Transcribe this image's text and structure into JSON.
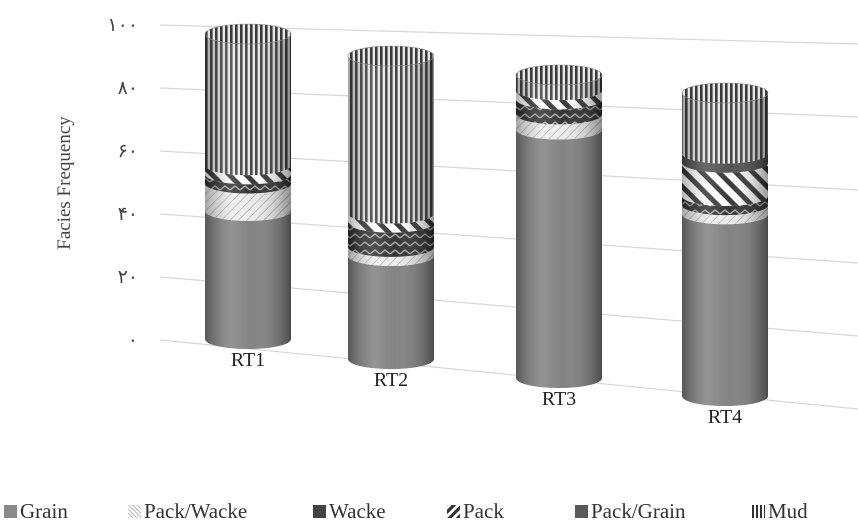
{
  "chart_data": {
    "type": "bar",
    "style": "3d-stacked-cylinder",
    "ylabel": "Facies Frequency",
    "y_ticks": [
      "٠",
      "٢٠",
      "۴٠",
      "۶٠",
      "٨٠",
      "١٠٠"
    ],
    "ylim": [
      0,
      100
    ],
    "grid": true,
    "legend_position": "bottom",
    "categories": [
      "RT1",
      "RT2",
      "RT3",
      "RT4"
    ],
    "series": [
      {
        "name": "Grain",
        "values": [
          42,
          34,
          82,
          60
        ],
        "color": "#7a7a7a",
        "pattern": "solid"
      },
      {
        "name": "Pack/Wacke",
        "values": [
          9,
          3,
          5,
          3
        ],
        "color": "#e6e6e6",
        "pattern": "fine-diagonal"
      },
      {
        "name": "Wacke",
        "values": [
          3,
          8,
          5,
          3
        ],
        "color": "#3c3c3c",
        "pattern": "zigzag"
      },
      {
        "name": "Pack",
        "values": [
          3,
          3,
          3,
          11
        ],
        "color": "#ffffff",
        "pattern": "bold-diagonal"
      },
      {
        "name": "Pack/Grain",
        "values": [
          0,
          0,
          0,
          3
        ],
        "color": "#4a4a4a",
        "pattern": "solid-dark"
      },
      {
        "name": "Mud",
        "values": [
          43,
          52,
          5,
          20
        ],
        "color": "#5a5a5a",
        "pattern": "vertical-stripes"
      }
    ]
  },
  "legend": {
    "items": [
      {
        "label": "Grain"
      },
      {
        "label": "Pack/Wacke"
      },
      {
        "label": "Wacke"
      },
      {
        "label": "Pack"
      },
      {
        "label": "Pack/Grain"
      },
      {
        "label": "Mud"
      }
    ]
  }
}
